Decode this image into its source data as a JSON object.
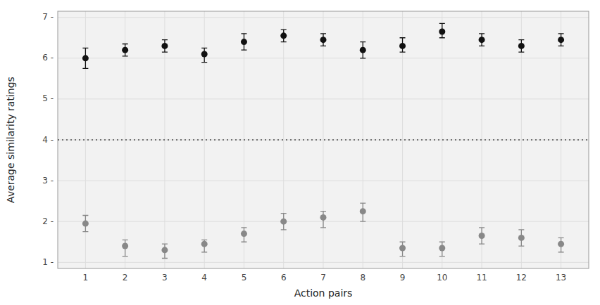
{
  "chart_data": {
    "type": "scatter",
    "x_label": "Action pairs",
    "y_label": "Average similarity ratings",
    "x": [
      1,
      2,
      3,
      4,
      5,
      6,
      7,
      8,
      9,
      10,
      11,
      12,
      13
    ],
    "series": [
      {
        "color": "#111111",
        "marker": "circle",
        "values": [
          6.0,
          6.2,
          6.3,
          6.1,
          6.4,
          6.55,
          6.45,
          6.2,
          6.3,
          6.65,
          6.45,
          6.3,
          6.45
        ],
        "error_minus": [
          0.25,
          0.15,
          0.15,
          0.2,
          0.2,
          0.15,
          0.15,
          0.2,
          0.15,
          0.15,
          0.15,
          0.15,
          0.15
        ],
        "error_plus": [
          0.25,
          0.15,
          0.15,
          0.15,
          0.2,
          0.15,
          0.15,
          0.2,
          0.2,
          0.2,
          0.15,
          0.15,
          0.15
        ]
      },
      {
        "color": "#888888",
        "marker": "circle",
        "values": [
          1.95,
          1.4,
          1.3,
          1.45,
          1.7,
          2.0,
          2.1,
          2.25,
          1.35,
          1.35,
          1.65,
          1.6,
          1.45
        ],
        "error_minus": [
          0.2,
          0.25,
          0.2,
          0.2,
          0.2,
          0.2,
          0.25,
          0.25,
          0.2,
          0.2,
          0.2,
          0.2,
          0.2
        ],
        "error_plus": [
          0.2,
          0.15,
          0.15,
          0.1,
          0.15,
          0.2,
          0.15,
          0.2,
          0.15,
          0.15,
          0.2,
          0.2,
          0.15
        ]
      }
    ],
    "reference_line": 4.0,
    "xlim": [
      0.3,
      13.7
    ],
    "xticks": [
      1,
      2,
      3,
      4,
      5,
      6,
      7,
      8,
      9,
      10,
      11,
      12,
      13
    ],
    "ylim": [
      0.85,
      7.15
    ],
    "yticks": [
      {
        "value": 1,
        "label": "1 -"
      },
      {
        "value": 2,
        "label": "2 -"
      },
      {
        "value": 3,
        "label": "3 -"
      },
      {
        "value": 4,
        "label": "4 -"
      },
      {
        "value": 5,
        "label": "5 -"
      },
      {
        "value": 6,
        "label": "6 -"
      },
      {
        "value": 7,
        "label": "7 -"
      }
    ],
    "grid": true
  }
}
